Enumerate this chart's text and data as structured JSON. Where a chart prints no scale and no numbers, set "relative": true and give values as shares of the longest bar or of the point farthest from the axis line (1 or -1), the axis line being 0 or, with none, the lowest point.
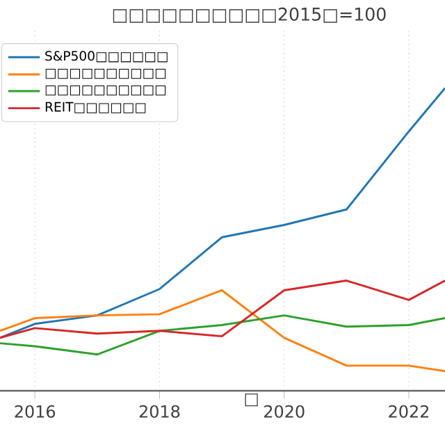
{
  "chart_data": {
    "type": "line",
    "title": "□□□□□□□□□□2015□=100",
    "xlabel": "□",
    "relative": true,
    "xlim": [
      2015.44,
      2022.58
    ],
    "xticks": [
      2016,
      2018,
      2020,
      2022
    ],
    "grid": true,
    "legend": "top left",
    "series": [
      {
        "name": "S&P500□□□□□□",
        "color": "#1f77b4",
        "x": [
          2015.44,
          2016,
          2017,
          2018,
          2019,
          2020,
          2021,
          2022,
          2022.58
        ],
        "values": [
          0.175,
          0.221,
          0.249,
          0.336,
          0.507,
          0.548,
          0.599,
          0.857,
          1
        ]
      },
      {
        "name": "□□□□□□□□□□",
        "color": "#ff7f0e",
        "x": [
          2015.44,
          2016,
          2017,
          2018,
          2019,
          2020,
          2021,
          2022,
          2022.58
        ],
        "values": [
          0.198,
          0.24,
          0.249,
          0.253,
          0.332,
          0.175,
          0.083,
          0.083,
          0.065
        ]
      },
      {
        "name": "□□□□□□□□□□",
        "color": "#2ca02c",
        "x": [
          2015.44,
          2016,
          2017,
          2018,
          2019,
          2020,
          2021,
          2022,
          2022.58
        ],
        "values": [
          0.157,
          0.147,
          0.12,
          0.198,
          0.217,
          0.249,
          0.212,
          0.217,
          0.24
        ]
      },
      {
        "name": "REIT□□□□□□",
        "color": "#d62728",
        "x": [
          2015.44,
          2016,
          2017,
          2018,
          2019,
          2020,
          2021,
          2022,
          2022.58
        ],
        "values": [
          0.175,
          0.207,
          0.189,
          0.198,
          0.18,
          0.332,
          0.364,
          0.3,
          0.364
        ]
      }
    ]
  }
}
